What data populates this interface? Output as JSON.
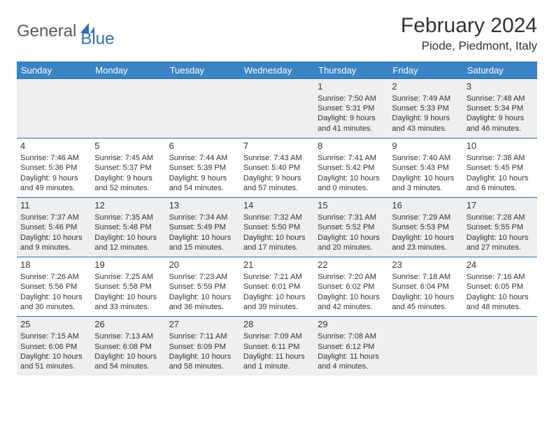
{
  "logo": {
    "general": "General",
    "blue": "Blue"
  },
  "title": "February 2024",
  "location": "Piode, Piedmont, Italy",
  "colors": {
    "header_bg": "#3a84c6",
    "border": "#2d6fb8",
    "shade": "#efefef",
    "text": "#333333"
  },
  "weekdays": [
    "Sunday",
    "Monday",
    "Tuesday",
    "Wednesday",
    "Thursday",
    "Friday",
    "Saturday"
  ],
  "weeks": [
    [
      null,
      null,
      null,
      null,
      {
        "n": "1",
        "sr": "Sunrise: 7:50 AM",
        "ss": "Sunset: 5:31 PM",
        "d1": "Daylight: 9 hours",
        "d2": "and 41 minutes."
      },
      {
        "n": "2",
        "sr": "Sunrise: 7:49 AM",
        "ss": "Sunset: 5:33 PM",
        "d1": "Daylight: 9 hours",
        "d2": "and 43 minutes."
      },
      {
        "n": "3",
        "sr": "Sunrise: 7:48 AM",
        "ss": "Sunset: 5:34 PM",
        "d1": "Daylight: 9 hours",
        "d2": "and 46 minutes."
      }
    ],
    [
      {
        "n": "4",
        "sr": "Sunrise: 7:46 AM",
        "ss": "Sunset: 5:36 PM",
        "d1": "Daylight: 9 hours",
        "d2": "and 49 minutes."
      },
      {
        "n": "5",
        "sr": "Sunrise: 7:45 AM",
        "ss": "Sunset: 5:37 PM",
        "d1": "Daylight: 9 hours",
        "d2": "and 52 minutes."
      },
      {
        "n": "6",
        "sr": "Sunrise: 7:44 AM",
        "ss": "Sunset: 5:39 PM",
        "d1": "Daylight: 9 hours",
        "d2": "and 54 minutes."
      },
      {
        "n": "7",
        "sr": "Sunrise: 7:43 AM",
        "ss": "Sunset: 5:40 PM",
        "d1": "Daylight: 9 hours",
        "d2": "and 57 minutes."
      },
      {
        "n": "8",
        "sr": "Sunrise: 7:41 AM",
        "ss": "Sunset: 5:42 PM",
        "d1": "Daylight: 10 hours",
        "d2": "and 0 minutes."
      },
      {
        "n": "9",
        "sr": "Sunrise: 7:40 AM",
        "ss": "Sunset: 5:43 PM",
        "d1": "Daylight: 10 hours",
        "d2": "and 3 minutes."
      },
      {
        "n": "10",
        "sr": "Sunrise: 7:38 AM",
        "ss": "Sunset: 5:45 PM",
        "d1": "Daylight: 10 hours",
        "d2": "and 6 minutes."
      }
    ],
    [
      {
        "n": "11",
        "sr": "Sunrise: 7:37 AM",
        "ss": "Sunset: 5:46 PM",
        "d1": "Daylight: 10 hours",
        "d2": "and 9 minutes."
      },
      {
        "n": "12",
        "sr": "Sunrise: 7:35 AM",
        "ss": "Sunset: 5:48 PM",
        "d1": "Daylight: 10 hours",
        "d2": "and 12 minutes."
      },
      {
        "n": "13",
        "sr": "Sunrise: 7:34 AM",
        "ss": "Sunset: 5:49 PM",
        "d1": "Daylight: 10 hours",
        "d2": "and 15 minutes."
      },
      {
        "n": "14",
        "sr": "Sunrise: 7:32 AM",
        "ss": "Sunset: 5:50 PM",
        "d1": "Daylight: 10 hours",
        "d2": "and 17 minutes."
      },
      {
        "n": "15",
        "sr": "Sunrise: 7:31 AM",
        "ss": "Sunset: 5:52 PM",
        "d1": "Daylight: 10 hours",
        "d2": "and 20 minutes."
      },
      {
        "n": "16",
        "sr": "Sunrise: 7:29 AM",
        "ss": "Sunset: 5:53 PM",
        "d1": "Daylight: 10 hours",
        "d2": "and 23 minutes."
      },
      {
        "n": "17",
        "sr": "Sunrise: 7:28 AM",
        "ss": "Sunset: 5:55 PM",
        "d1": "Daylight: 10 hours",
        "d2": "and 27 minutes."
      }
    ],
    [
      {
        "n": "18",
        "sr": "Sunrise: 7:26 AM",
        "ss": "Sunset: 5:56 PM",
        "d1": "Daylight: 10 hours",
        "d2": "and 30 minutes."
      },
      {
        "n": "19",
        "sr": "Sunrise: 7:25 AM",
        "ss": "Sunset: 5:58 PM",
        "d1": "Daylight: 10 hours",
        "d2": "and 33 minutes."
      },
      {
        "n": "20",
        "sr": "Sunrise: 7:23 AM",
        "ss": "Sunset: 5:59 PM",
        "d1": "Daylight: 10 hours",
        "d2": "and 36 minutes."
      },
      {
        "n": "21",
        "sr": "Sunrise: 7:21 AM",
        "ss": "Sunset: 6:01 PM",
        "d1": "Daylight: 10 hours",
        "d2": "and 39 minutes."
      },
      {
        "n": "22",
        "sr": "Sunrise: 7:20 AM",
        "ss": "Sunset: 6:02 PM",
        "d1": "Daylight: 10 hours",
        "d2": "and 42 minutes."
      },
      {
        "n": "23",
        "sr": "Sunrise: 7:18 AM",
        "ss": "Sunset: 6:04 PM",
        "d1": "Daylight: 10 hours",
        "d2": "and 45 minutes."
      },
      {
        "n": "24",
        "sr": "Sunrise: 7:16 AM",
        "ss": "Sunset: 6:05 PM",
        "d1": "Daylight: 10 hours",
        "d2": "and 48 minutes."
      }
    ],
    [
      {
        "n": "25",
        "sr": "Sunrise: 7:15 AM",
        "ss": "Sunset: 6:06 PM",
        "d1": "Daylight: 10 hours",
        "d2": "and 51 minutes."
      },
      {
        "n": "26",
        "sr": "Sunrise: 7:13 AM",
        "ss": "Sunset: 6:08 PM",
        "d1": "Daylight: 10 hours",
        "d2": "and 54 minutes."
      },
      {
        "n": "27",
        "sr": "Sunrise: 7:11 AM",
        "ss": "Sunset: 6:09 PM",
        "d1": "Daylight: 10 hours",
        "d2": "and 58 minutes."
      },
      {
        "n": "28",
        "sr": "Sunrise: 7:09 AM",
        "ss": "Sunset: 6:11 PM",
        "d1": "Daylight: 11 hours",
        "d2": "and 1 minute."
      },
      {
        "n": "29",
        "sr": "Sunrise: 7:08 AM",
        "ss": "Sunset: 6:12 PM",
        "d1": "Daylight: 11 hours",
        "d2": "and 4 minutes."
      },
      null,
      null
    ]
  ]
}
